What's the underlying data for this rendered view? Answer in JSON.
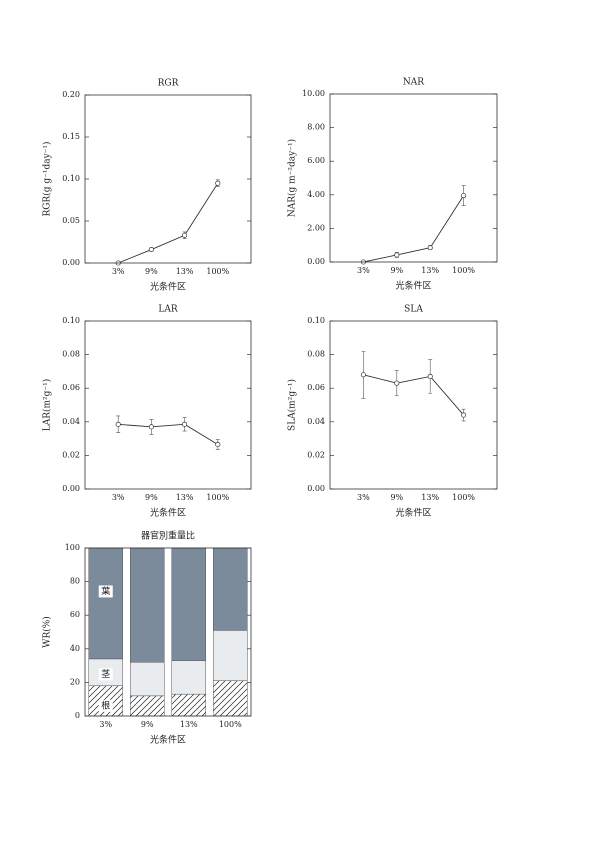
{
  "chart_data": [
    {
      "type": "line",
      "title": "RGR",
      "xlabel": "光条件区",
      "ylabel": "RGR(g g⁻¹day⁻¹)",
      "categories": [
        "3%",
        "9%",
        "13%",
        "100%"
      ],
      "values": [
        0.0,
        0.016,
        0.033,
        0.095
      ],
      "errors": [
        0.001,
        0.002,
        0.004,
        0.004
      ],
      "color": "#333333",
      "ylim": [
        0,
        0.2
      ],
      "yticks": [
        {
          "value": 0,
          "label": "0.00"
        },
        {
          "value": 0.05,
          "label": "0.05"
        },
        {
          "value": 0.1,
          "label": "0.10"
        },
        {
          "value": 0.15,
          "label": "0.15"
        },
        {
          "value": 0.2,
          "label": "0.20"
        }
      ]
    },
    {
      "type": "line",
      "title": "NAR",
      "xlabel": "光条件区",
      "ylabel": "NAR(g m⁻²day⁻¹)",
      "categories": [
        "3%",
        "9%",
        "13%",
        "100%"
      ],
      "values": [
        0.0,
        0.42,
        0.85,
        3.95
      ],
      "errors": [
        0.05,
        0.15,
        0.12,
        0.6
      ],
      "color": "#333333",
      "ylim": [
        0,
        10
      ],
      "yticks": [
        {
          "value": 0,
          "label": "0.00"
        },
        {
          "value": 2,
          "label": "2.00"
        },
        {
          "value": 4,
          "label": "4.00"
        },
        {
          "value": 6,
          "label": "6.00"
        },
        {
          "value": 8,
          "label": "8.00"
        },
        {
          "value": 10,
          "label": "10.00"
        }
      ]
    },
    {
      "type": "line",
      "title": "LAR",
      "xlabel": "光条件区",
      "ylabel": "LAR(m²g⁻¹)",
      "categories": [
        "3%",
        "9%",
        "13%",
        "100%"
      ],
      "values": [
        0.0385,
        0.037,
        0.0385,
        0.0265
      ],
      "errors": [
        0.005,
        0.0045,
        0.004,
        0.003
      ],
      "color": "#333333",
      "ylim": [
        0,
        0.1
      ],
      "yticks": [
        {
          "value": 0,
          "label": "0.00"
        },
        {
          "value": 0.02,
          "label": "0.02"
        },
        {
          "value": 0.04,
          "label": "0.04"
        },
        {
          "value": 0.06,
          "label": "0.06"
        },
        {
          "value": 0.08,
          "label": "0.08"
        },
        {
          "value": 0.1,
          "label": "0.10"
        }
      ]
    },
    {
      "type": "line",
      "title": "SLA",
      "xlabel": "光条件区",
      "ylabel": "SLA(m²g⁻¹)",
      "categories": [
        "3%",
        "9%",
        "13%",
        "100%"
      ],
      "values": [
        0.068,
        0.063,
        0.067,
        0.044
      ],
      "errors": [
        0.014,
        0.0075,
        0.01,
        0.0035
      ],
      "color": "#333333",
      "ylim": [
        0,
        0.1
      ],
      "yticks": [
        {
          "value": 0,
          "label": "0.00"
        },
        {
          "value": 0.02,
          "label": "0.02"
        },
        {
          "value": 0.04,
          "label": "0.04"
        },
        {
          "value": 0.06,
          "label": "0.06"
        },
        {
          "value": 0.08,
          "label": "0.08"
        },
        {
          "value": 0.1,
          "label": "0.10"
        }
      ]
    },
    {
      "type": "stacked_bar",
      "title": "器官別重量比",
      "xlabel": "光条件区",
      "ylabel": "WR(%)",
      "categories": [
        "3%",
        "9%",
        "13%",
        "100%"
      ],
      "series": [
        {
          "name": "根",
          "color": "#ffffff",
          "hatch": true,
          "values": [
            18,
            12,
            13,
            21
          ]
        },
        {
          "name": "茎",
          "color": "#e8ecef",
          "hatch": false,
          "values": [
            16,
            20,
            20,
            30
          ]
        },
        {
          "name": "葉",
          "color": "#7b8b9b",
          "hatch": false,
          "values": [
            66,
            68,
            67,
            49
          ]
        }
      ],
      "ylim": [
        0,
        100
      ],
      "yticks": [
        0,
        20,
        40,
        60,
        80,
        100
      ]
    }
  ]
}
